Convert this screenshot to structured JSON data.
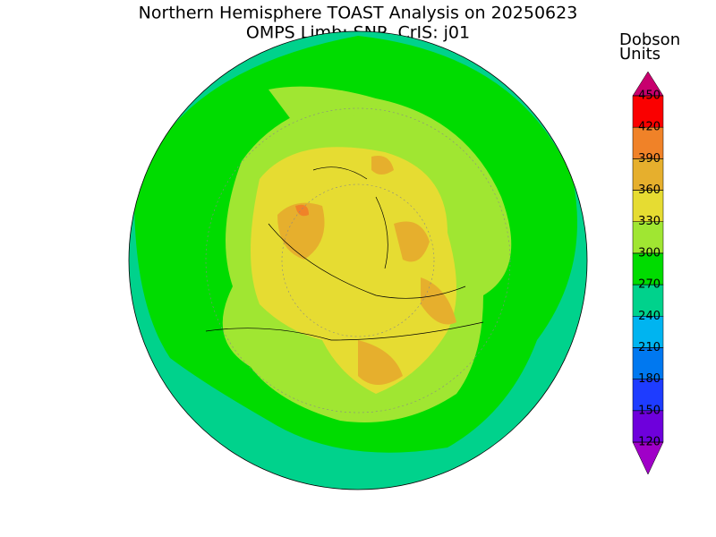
{
  "header": {
    "title_lines": [
      "Northern Hemisphere TOAST Analysis on 20250623",
      "OMPS Limb: SNP, CrIS: j01"
    ]
  },
  "colorbar": {
    "label_lines": [
      "Dobson",
      "Units"
    ],
    "range": [
      120,
      450
    ],
    "ticks": [
      120,
      150,
      180,
      210,
      240,
      270,
      300,
      330,
      360,
      390,
      420,
      450
    ],
    "colors": [
      "#a000c8",
      "#6e00dc",
      "#1e3cff",
      "#0078f0",
      "#00b4f0",
      "#00d28c",
      "#00dc00",
      "#a0e632",
      "#e6dc32",
      "#e6af2d",
      "#f08228",
      "#fa0000",
      "#c8006e"
    ]
  }
}
